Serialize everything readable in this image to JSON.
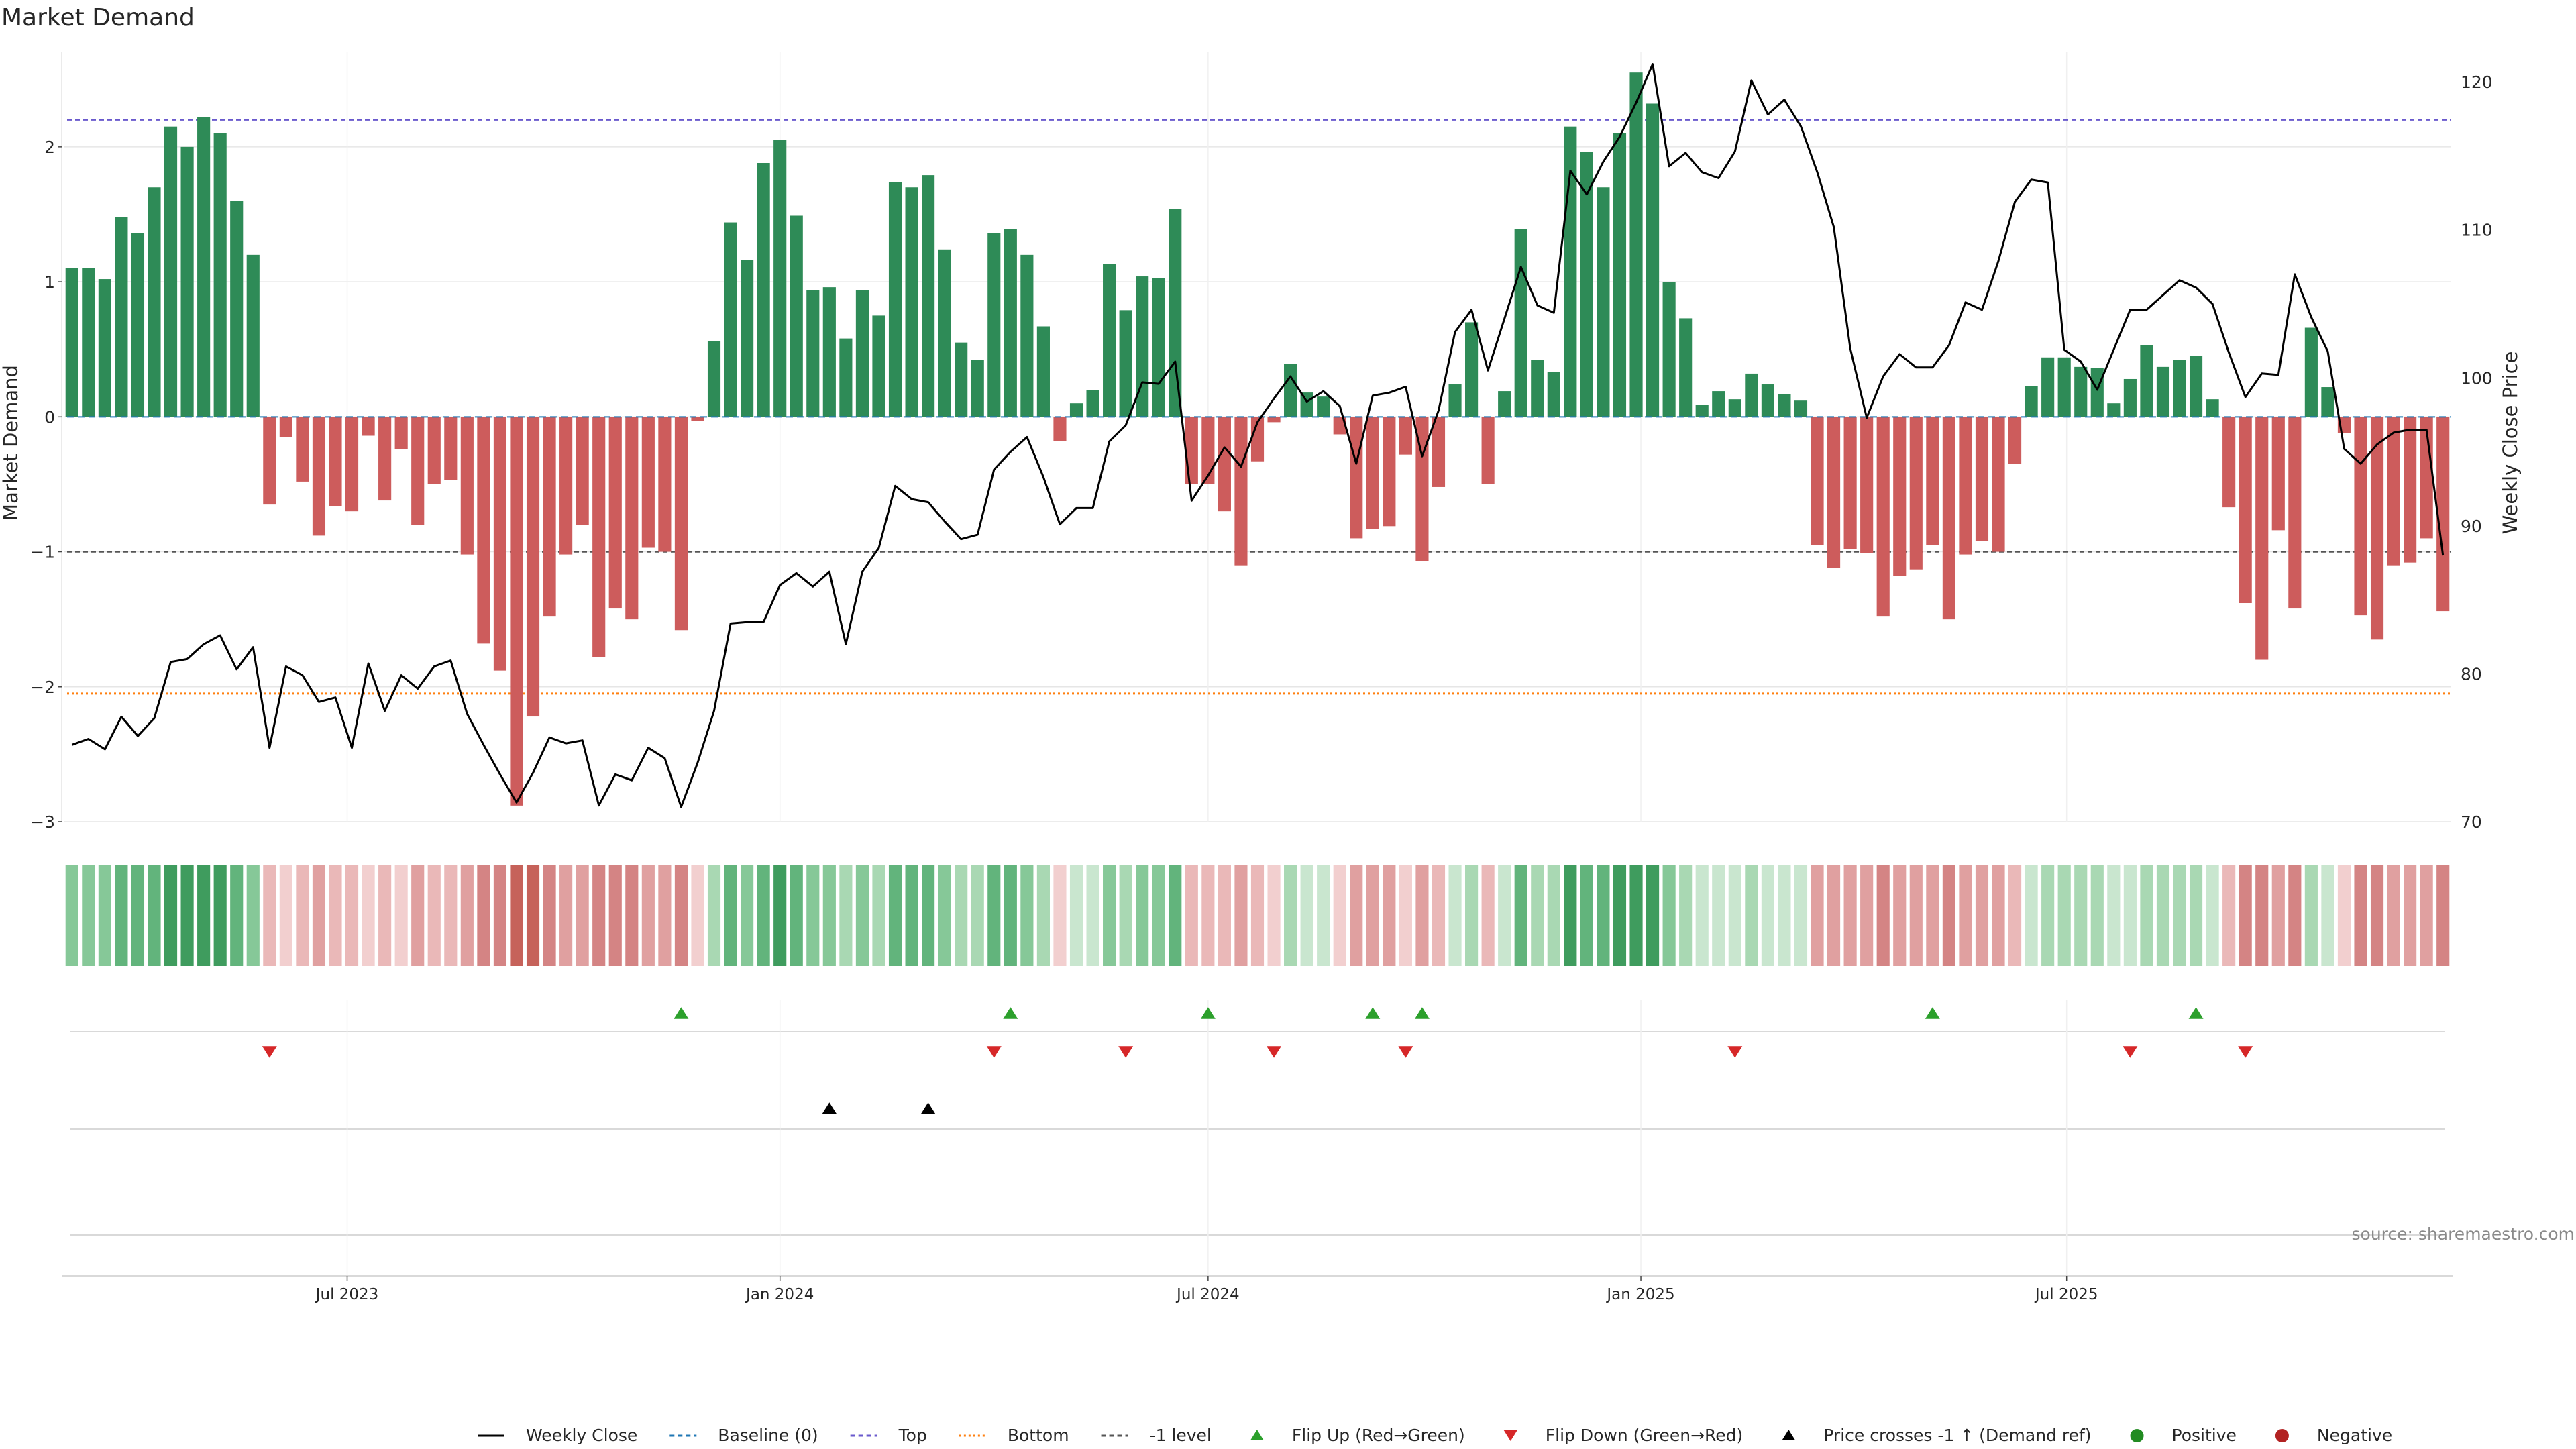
{
  "title": "Market Demand",
  "source_note": "source: sharemaestro.com",
  "colors": {
    "positive_bar": "#2e8b57",
    "negative_bar": "#cd5c5c",
    "price_line": "#000000",
    "baseline": "#1f77b4",
    "top_line": "#6a5acd",
    "bottom_line": "#ff7f0e",
    "minus_one_line": "#555555",
    "flip_up": "#2ca02c",
    "flip_down": "#d62728",
    "price_cross": "#000000",
    "grid": "#e6e6e6"
  },
  "chart_data": {
    "type": "bar",
    "title": "Market Demand",
    "ylabel": "Market Demand",
    "y2label": "Weekly Close Price",
    "ylim": [
      -3.0,
      2.7
    ],
    "y2lim": [
      70,
      122
    ],
    "yticks": [
      -3,
      -2,
      -1,
      0,
      1,
      2
    ],
    "y2ticks": [
      70,
      80,
      90,
      100,
      110,
      120
    ],
    "x_dates_start": "2023-03-06",
    "x_interval": "weekly",
    "xticks": [
      {
        "date": "2023-07-01",
        "label": "Jul 2023"
      },
      {
        "date": "2024-01-01",
        "label": "Jan 2024"
      },
      {
        "date": "2024-07-01",
        "label": "Jul 2024"
      },
      {
        "date": "2025-01-01",
        "label": "Jan 2025"
      },
      {
        "date": "2025-07-01",
        "label": "Jul 2025"
      }
    ],
    "reference_lines": {
      "top": 2.2,
      "bottom": -2.05,
      "minus_one": -1.0,
      "baseline": 0
    },
    "grid": true,
    "legend_position": "bottom",
    "legend": [
      {
        "label": "Weekly Close",
        "kind": "line",
        "color": "#000000"
      },
      {
        "label": "Baseline (0)",
        "kind": "dash",
        "color": "#1f77b4"
      },
      {
        "label": "Top",
        "kind": "dash",
        "color": "#6a5acd"
      },
      {
        "label": "Bottom",
        "kind": "dot",
        "color": "#ff7f0e"
      },
      {
        "label": "-1 level",
        "kind": "dash",
        "color": "#555555"
      },
      {
        "label": "Flip Up (Red→Green)",
        "kind": "triangle-up",
        "color": "#2ca02c"
      },
      {
        "label": "Flip Down (Green→Red)",
        "kind": "triangle-down",
        "color": "#d62728"
      },
      {
        "label": "Price crosses -1 ↑ (Demand ref)",
        "kind": "triangle-up",
        "color": "#000000"
      },
      {
        "label": "Positive",
        "kind": "circle",
        "color": "#228b22"
      },
      {
        "label": "Negative",
        "kind": "circle",
        "color": "#b22222"
      }
    ],
    "series": [
      {
        "name": "Market Demand",
        "kind": "bar",
        "values": [
          1.1,
          1.1,
          1.02,
          1.48,
          1.36,
          1.7,
          2.15,
          2.0,
          2.22,
          2.1,
          1.6,
          1.2,
          -0.65,
          -0.15,
          -0.48,
          -0.88,
          -0.66,
          -0.7,
          -0.14,
          -0.62,
          -0.24,
          -0.8,
          -0.5,
          -0.47,
          -1.02,
          -1.68,
          -1.88,
          -2.88,
          -2.22,
          -1.48,
          -1.02,
          -0.8,
          -1.78,
          -1.42,
          -1.5,
          -0.97,
          -1.0,
          -1.58,
          -0.03,
          0.56,
          1.44,
          1.16,
          1.88,
          2.05,
          1.49,
          0.94,
          0.96,
          0.58,
          0.94,
          0.75,
          1.74,
          1.7,
          1.79,
          1.24,
          0.55,
          0.42,
          1.36,
          1.39,
          1.2,
          0.67,
          -0.18,
          0.1,
          0.2,
          1.13,
          0.79,
          1.04,
          1.03,
          1.54,
          -0.5,
          -0.5,
          -0.7,
          -1.1,
          -0.33,
          -0.04,
          0.39,
          0.18,
          0.15,
          -0.13,
          -0.9,
          -0.83,
          -0.81,
          -0.28,
          -1.07,
          -0.52,
          0.24,
          0.7,
          -0.5,
          0.19,
          1.39,
          0.42,
          0.33,
          2.15,
          1.96,
          1.7,
          2.1,
          2.55,
          2.32,
          1.0,
          0.73,
          0.09,
          0.19,
          0.13,
          0.32,
          0.24,
          0.17,
          0.12,
          -0.95,
          -1.12,
          -0.98,
          -1.01,
          -1.48,
          -1.18,
          -1.13,
          -0.95,
          -1.5,
          -1.02,
          -0.92,
          -1.0,
          -0.35,
          0.23,
          0.44,
          0.44,
          0.37,
          0.36,
          0.1,
          0.28,
          0.53,
          0.37,
          0.42,
          0.45,
          0.13,
          -0.67,
          -1.38,
          -1.8,
          -0.84,
          -1.42,
          0.66,
          0.22,
          -0.12,
          -1.47,
          -1.65,
          -1.1,
          -1.08,
          -0.9,
          -1.44
        ]
      },
      {
        "name": "Weekly Close",
        "kind": "line",
        "axis": "right",
        "values": [
          75.2,
          75.6,
          74.9,
          77.1,
          75.8,
          77.0,
          80.8,
          81.0,
          82.0,
          82.6,
          80.3,
          81.8,
          75.0,
          80.5,
          79.9,
          78.1,
          78.4,
          75.0,
          80.7,
          77.5,
          79.9,
          79.0,
          80.5,
          80.9,
          77.3,
          75.2,
          73.2,
          71.3,
          73.3,
          75.7,
          75.3,
          75.5,
          71.1,
          73.2,
          72.8,
          75.0,
          74.3,
          71.0,
          74.0,
          77.5,
          83.4,
          83.5,
          83.5,
          86.0,
          86.8,
          85.9,
          86.9,
          82.0,
          86.9,
          88.5,
          92.7,
          91.8,
          91.6,
          90.3,
          89.1,
          89.4,
          93.8,
          95.0,
          96.0,
          93.3,
          90.1,
          91.2,
          91.2,
          95.7,
          96.8,
          99.7,
          99.6,
          101.1,
          91.7,
          93.4,
          95.3,
          94.0,
          97.0,
          98.6,
          100.1,
          98.4,
          99.1,
          98.1,
          94.2,
          98.8,
          99.0,
          99.4,
          94.7,
          97.8,
          103.1,
          104.6,
          100.5,
          104.0,
          107.5,
          104.9,
          104.4,
          114.0,
          112.4,
          114.6,
          116.3,
          118.6,
          121.2,
          114.3,
          115.2,
          113.9,
          113.5,
          115.3,
          120.1,
          117.8,
          118.8,
          117.0,
          113.9,
          110.2,
          102.0,
          97.3,
          100.1,
          101.6,
          100.7,
          100.7,
          102.2,
          105.1,
          104.6,
          107.9,
          111.9,
          113.4,
          113.2,
          101.9,
          101.1,
          99.2,
          101.9,
          104.6,
          104.6,
          105.6,
          106.6,
          106.1,
          105.0,
          101.7,
          98.7,
          100.3,
          100.2,
          107.0,
          104.1,
          101.8,
          95.2,
          94.2,
          95.5,
          96.3,
          96.5,
          96.5,
          88.0
        ]
      }
    ],
    "markers": {
      "flip_up_dates": [
        "2023-11-20",
        "2024-04-08",
        "2024-07-01",
        "2024-09-09",
        "2024-09-30",
        "2025-05-05",
        "2025-08-25"
      ],
      "flip_down_dates": [
        "2023-05-29",
        "2024-04-01",
        "2024-05-27",
        "2024-07-29",
        "2024-09-23",
        "2025-02-10",
        "2025-07-28",
        "2025-09-15"
      ],
      "price_cross_dates": [
        "2024-01-22",
        "2024-03-04"
      ]
    },
    "strength_strip": {
      "description": "weekly demand intensity strip"
    }
  }
}
